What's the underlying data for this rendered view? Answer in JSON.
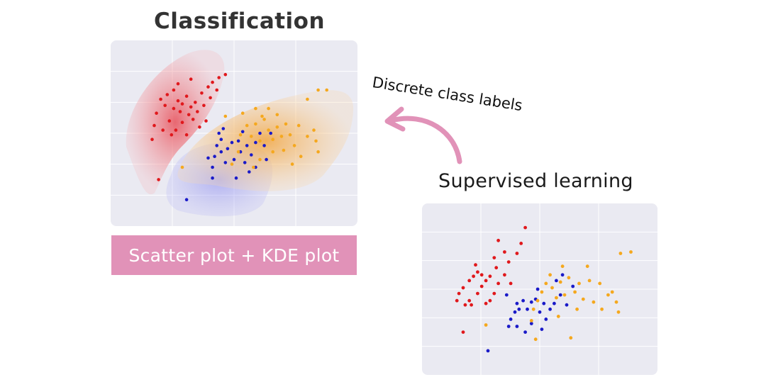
{
  "titles": {
    "classification": "Classification",
    "supervised": "Supervised learning"
  },
  "caption": "Scatter plot + KDE plot",
  "arrow_label": "Discrete class labels",
  "colors": {
    "panel_bg": "#eaeaf2",
    "grid": "#ffffff",
    "caption_bg": "#e192b8",
    "arrow": "#e192b8",
    "red": "#e0181c",
    "blue": "#1a1ac8",
    "orange": "#f5a81e",
    "kde_red": "#f07070",
    "kde_blue": "#a8a8f5",
    "kde_orange": "#f6c07a"
  },
  "chart_data": [
    {
      "type": "scatter",
      "title": "",
      "xlabel": "",
      "ylabel": "",
      "xlim": [
        0,
        10
      ],
      "ylim": [
        0,
        10
      ],
      "grid": true,
      "kde": true,
      "series": [
        {
          "color": "red",
          "points": [
            [
              1.6,
              7.2
            ],
            [
              1.9,
              7.5
            ],
            [
              2.2,
              7.8
            ],
            [
              2.4,
              7.1
            ],
            [
              2.6,
              6.9
            ],
            [
              2.8,
              7.4
            ],
            [
              3.0,
              6.7
            ],
            [
              3.2,
              7.0
            ],
            [
              2.5,
              6.4
            ],
            [
              2.9,
              6.2
            ],
            [
              3.3,
              6.4
            ],
            [
              2.2,
              6.6
            ],
            [
              3.5,
              7.6
            ],
            [
              3.8,
              8.0
            ],
            [
              4.0,
              8.3
            ],
            [
              4.3,
              8.6
            ],
            [
              2.0,
              5.8
            ],
            [
              2.6,
              5.7
            ],
            [
              3.1,
              5.9
            ],
            [
              1.4,
              6.3
            ],
            [
              1.7,
              5.2
            ],
            [
              3.6,
              6.8
            ],
            [
              3.9,
              7.3
            ],
            [
              4.2,
              7.8
            ],
            [
              2.3,
              5.2
            ],
            [
              1.2,
              4.6
            ],
            [
              2.8,
              4.9
            ],
            [
              3.4,
              5.4
            ],
            [
              1.5,
              2.0
            ],
            [
              4.6,
              8.8
            ],
            [
              2.4,
              8.2
            ],
            [
              3.0,
              8.5
            ],
            [
              1.8,
              6.8
            ],
            [
              2.1,
              4.9
            ],
            [
              3.7,
              5.8
            ],
            [
              1.3,
              5.5
            ]
          ]
        },
        {
          "color": "blue",
          "points": [
            [
              2.8,
              0.7
            ],
            [
              4.0,
              2.1
            ],
            [
              4.0,
              2.8
            ],
            [
              4.1,
              3.5
            ],
            [
              4.2,
              4.2
            ],
            [
              4.4,
              3.8
            ],
            [
              4.4,
              4.6
            ],
            [
              4.6,
              3.1
            ],
            [
              4.7,
              4.0
            ],
            [
              4.9,
              4.4
            ],
            [
              5.0,
              3.3
            ],
            [
              5.2,
              4.5
            ],
            [
              5.3,
              3.8
            ],
            [
              5.5,
              3.1
            ],
            [
              5.6,
              4.2
            ],
            [
              5.8,
              3.6
            ],
            [
              6.0,
              4.4
            ],
            [
              6.2,
              5.0
            ],
            [
              6.4,
              4.2
            ],
            [
              5.4,
              5.1
            ],
            [
              5.1,
              2.1
            ],
            [
              4.3,
              5.0
            ],
            [
              5.7,
              2.5
            ],
            [
              6.5,
              3.3
            ],
            [
              6.7,
              5.0
            ],
            [
              3.8,
              3.4
            ],
            [
              4.5,
              5.3
            ],
            [
              6.0,
              2.8
            ]
          ]
        },
        {
          "color": "orange",
          "points": [
            [
              2.6,
              2.8
            ],
            [
              4.9,
              3.0
            ],
            [
              5.2,
              3.8
            ],
            [
              5.3,
              4.9
            ],
            [
              5.6,
              5.5
            ],
            [
              5.8,
              4.8
            ],
            [
              6.0,
              5.6
            ],
            [
              6.2,
              4.5
            ],
            [
              6.4,
              5.9
            ],
            [
              6.6,
              5.2
            ],
            [
              6.8,
              4.6
            ],
            [
              7.0,
              5.4
            ],
            [
              7.2,
              4.8
            ],
            [
              7.4,
              5.6
            ],
            [
              7.6,
              4.9
            ],
            [
              7.8,
              4.2
            ],
            [
              8.0,
              5.5
            ],
            [
              8.4,
              4.8
            ],
            [
              8.8,
              4.5
            ],
            [
              8.9,
              3.8
            ],
            [
              8.4,
              7.2
            ],
            [
              8.9,
              7.8
            ],
            [
              9.3,
              7.8
            ],
            [
              7.0,
              6.2
            ],
            [
              6.2,
              3.3
            ],
            [
              6.0,
              6.6
            ],
            [
              7.7,
              3.0
            ],
            [
              6.8,
              3.8
            ],
            [
              4.6,
              6.1
            ],
            [
              5.4,
              6.3
            ],
            [
              6.6,
              6.6
            ],
            [
              7.3,
              3.9
            ],
            [
              8.1,
              3.5
            ],
            [
              8.7,
              5.2
            ],
            [
              5.9,
              2.8
            ],
            [
              6.3,
              6.1
            ]
          ]
        }
      ]
    },
    {
      "type": "scatter",
      "title": "",
      "xlabel": "",
      "ylabel": "",
      "xlim": [
        0,
        10
      ],
      "ylim": [
        0,
        10
      ],
      "grid": true,
      "kde": false,
      "series": [
        {
          "color": "red",
          "points": [
            [
              1.0,
              4.2
            ],
            [
              1.1,
              4.7
            ],
            [
              1.3,
              5.1
            ],
            [
              1.6,
              5.6
            ],
            [
              1.8,
              5.9
            ],
            [
              2.0,
              6.2
            ],
            [
              2.2,
              6.0
            ],
            [
              2.4,
              5.6
            ],
            [
              2.6,
              5.9
            ],
            [
              2.2,
              5.2
            ],
            [
              2.0,
              4.7
            ],
            [
              1.6,
              4.2
            ],
            [
              1.4,
              3.9
            ],
            [
              2.6,
              4.2
            ],
            [
              2.8,
              4.7
            ],
            [
              3.0,
              5.4
            ],
            [
              3.3,
              6.0
            ],
            [
              3.5,
              6.9
            ],
            [
              3.9,
              7.5
            ],
            [
              4.1,
              8.2
            ],
            [
              4.3,
              9.3
            ],
            [
              3.0,
              8.4
            ],
            [
              3.3,
              7.6
            ],
            [
              2.9,
              6.5
            ],
            [
              1.9,
              6.7
            ],
            [
              2.8,
              7.2
            ],
            [
              1.3,
              2.0
            ],
            [
              3.6,
              5.4
            ],
            [
              2.4,
              4.0
            ],
            [
              1.7,
              3.9
            ]
          ]
        },
        {
          "color": "blue",
          "points": [
            [
              2.5,
              0.7
            ],
            [
              3.5,
              2.4
            ],
            [
              3.6,
              2.9
            ],
            [
              3.8,
              3.4
            ],
            [
              3.9,
              4.0
            ],
            [
              4.0,
              3.6
            ],
            [
              4.2,
              4.2
            ],
            [
              4.4,
              3.6
            ],
            [
              4.6,
              4.1
            ],
            [
              4.8,
              4.3
            ],
            [
              5.0,
              3.4
            ],
            [
              5.2,
              4.0
            ],
            [
              5.5,
              3.6
            ],
            [
              5.7,
              4.0
            ],
            [
              6.0,
              4.6
            ],
            [
              6.3,
              3.9
            ],
            [
              6.6,
              5.2
            ],
            [
              5.3,
              2.9
            ],
            [
              4.3,
              2.0
            ],
            [
              4.6,
              2.6
            ],
            [
              3.4,
              4.6
            ],
            [
              4.9,
              5.0
            ],
            [
              5.8,
              5.6
            ],
            [
              6.1,
              6.0
            ],
            [
              3.9,
              2.4
            ],
            [
              5.1,
              2.2
            ]
          ]
        },
        {
          "color": "orange",
          "points": [
            [
              2.4,
              2.5
            ],
            [
              4.6,
              2.8
            ],
            [
              4.7,
              3.6
            ],
            [
              4.9,
              4.2
            ],
            [
              5.1,
              4.8
            ],
            [
              5.3,
              5.4
            ],
            [
              5.6,
              5.1
            ],
            [
              5.8,
              4.4
            ],
            [
              6.0,
              5.5
            ],
            [
              6.2,
              4.6
            ],
            [
              6.4,
              5.8
            ],
            [
              6.7,
              4.8
            ],
            [
              6.9,
              5.4
            ],
            [
              7.1,
              4.3
            ],
            [
              7.4,
              5.6
            ],
            [
              7.6,
              4.1
            ],
            [
              7.9,
              5.4
            ],
            [
              8.3,
              4.6
            ],
            [
              8.7,
              4.1
            ],
            [
              8.8,
              3.4
            ],
            [
              8.9,
              7.5
            ],
            [
              9.4,
              7.6
            ],
            [
              7.3,
              6.6
            ],
            [
              6.1,
              6.6
            ],
            [
              5.5,
              6.0
            ],
            [
              6.8,
              3.6
            ],
            [
              8.0,
              3.6
            ],
            [
              8.5,
              4.8
            ],
            [
              4.8,
              1.5
            ],
            [
              6.5,
              1.6
            ],
            [
              5.9,
              3.1
            ]
          ]
        }
      ]
    }
  ]
}
